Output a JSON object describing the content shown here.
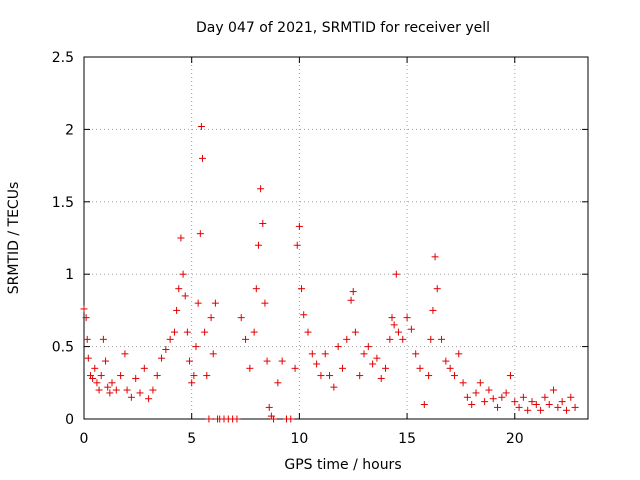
{
  "chart_data": {
    "type": "scatter",
    "title": "Day 047 of 2021, SRMTID for receiver yell",
    "xlabel": "GPS time / hours",
    "ylabel": "SRMTID / TECUs",
    "xlim": [
      0,
      23.4
    ],
    "ylim": [
      0,
      2.5
    ],
    "xticks": [
      0,
      5,
      10,
      15,
      20
    ],
    "xtick_labels": [
      "0",
      "5",
      "10",
      "15",
      "20"
    ],
    "yticks": [
      0,
      0.5,
      1,
      1.5,
      2,
      2.5
    ],
    "ytick_labels": [
      "0",
      "0.5",
      "1",
      "1.5",
      "2",
      "2.5"
    ],
    "grid": true,
    "marker": "+",
    "series": [
      {
        "name": "SRMTID",
        "color": "#e00000",
        "x": [
          0.0,
          0.1,
          0.15,
          0.2,
          0.3,
          0.4,
          0.5,
          0.6,
          0.7,
          0.8,
          0.9,
          1.0,
          1.1,
          1.2,
          1.3,
          1.5,
          1.7,
          1.9,
          2.0,
          2.2,
          2.4,
          2.6,
          2.8,
          3.0,
          3.2,
          3.4,
          3.6,
          3.8,
          4.0,
          4.2,
          4.3,
          4.4,
          4.5,
          4.6,
          4.7,
          4.8,
          4.9,
          5.0,
          5.1,
          5.2,
          5.3,
          5.4,
          5.45,
          5.5,
          5.6,
          5.7,
          5.8,
          5.9,
          6.0,
          6.1,
          6.2,
          6.3,
          6.5,
          6.7,
          6.9,
          7.1,
          7.3,
          7.5,
          7.7,
          7.9,
          8.0,
          8.1,
          8.2,
          8.3,
          8.4,
          8.5,
          8.6,
          8.7,
          8.8,
          9.0,
          9.2,
          9.4,
          9.6,
          9.8,
          9.9,
          10.0,
          10.1,
          10.2,
          10.4,
          10.6,
          10.8,
          11.0,
          11.2,
          11.4,
          11.6,
          11.8,
          12.0,
          12.2,
          12.4,
          12.5,
          12.6,
          12.8,
          13.0,
          13.2,
          13.4,
          13.6,
          13.8,
          14.0,
          14.2,
          14.3,
          14.4,
          14.5,
          14.6,
          14.8,
          15.0,
          15.2,
          15.4,
          15.6,
          15.8,
          16.0,
          16.1,
          16.2,
          16.3,
          16.4,
          16.6,
          16.8,
          17.0,
          17.2,
          17.4,
          17.6,
          17.8,
          18.0,
          18.2,
          18.4,
          18.6,
          18.8,
          19.0,
          19.2,
          19.4,
          19.6,
          19.8,
          20.0,
          20.2,
          20.4,
          20.6,
          20.8,
          21.0,
          21.2,
          21.4,
          21.6,
          21.8,
          22.0,
          22.2,
          22.4,
          22.6,
          22.8
        ],
        "y": [
          0.76,
          0.7,
          0.55,
          0.42,
          0.3,
          0.28,
          0.35,
          0.25,
          0.2,
          0.3,
          0.55,
          0.4,
          0.22,
          0.18,
          0.25,
          0.2,
          0.3,
          0.45,
          0.2,
          0.15,
          0.28,
          0.18,
          0.35,
          0.14,
          0.2,
          0.3,
          0.42,
          0.48,
          0.55,
          0.6,
          0.75,
          0.9,
          1.25,
          1.0,
          0.85,
          0.6,
          0.4,
          0.25,
          0.3,
          0.5,
          0.8,
          1.28,
          2.02,
          1.8,
          0.6,
          0.3,
          0.0,
          0.7,
          0.45,
          0.8,
          0.0,
          0.0,
          0.0,
          0.0,
          0.0,
          0.0,
          0.7,
          0.55,
          0.35,
          0.6,
          0.9,
          1.2,
          1.59,
          1.35,
          0.8,
          0.4,
          0.08,
          0.02,
          0.0,
          0.25,
          0.4,
          0.0,
          0.0,
          0.35,
          1.2,
          1.33,
          0.9,
          0.72,
          0.6,
          0.45,
          0.38,
          0.3,
          0.45,
          0.3,
          0.22,
          0.5,
          0.35,
          0.55,
          0.82,
          0.88,
          0.6,
          0.3,
          0.45,
          0.5,
          0.38,
          0.42,
          0.28,
          0.35,
          0.55,
          0.7,
          0.65,
          1.0,
          0.6,
          0.55,
          0.7,
          0.62,
          0.45,
          0.35,
          0.1,
          0.3,
          0.55,
          0.75,
          1.12,
          0.9,
          0.55,
          0.4,
          0.35,
          0.3,
          0.45,
          0.25,
          0.15,
          0.1,
          0.18,
          0.25,
          0.12,
          0.2,
          0.14,
          0.08,
          0.15,
          0.18,
          0.3,
          0.12,
          0.08,
          0.15,
          0.06,
          0.12,
          0.1,
          0.06,
          0.15,
          0.1,
          0.2,
          0.08,
          0.12,
          0.06,
          0.15,
          0.08
        ]
      }
    ]
  }
}
